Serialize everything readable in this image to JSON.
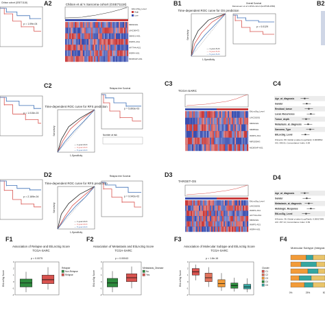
{
  "panels": {
    "A2": {
      "label": "A2",
      "title": "Chibon et al.'s Sarcoma cohort (GSE71118)",
      "genes": [
        "MIR22HG",
        "LINC00472",
        "UBXD1-AS1",
        "WWP1-AS1",
        "AF7744-AS1",
        "WDR4-AS1",
        "MCM3AP-AS1"
      ],
      "legend": [
        "EtiLncSig_Level",
        "High",
        "Low"
      ]
    },
    "A_left": {
      "header": "Chibon cohort (GSE71118)",
      "p": "p = 1.09e-04"
    },
    "B1": {
      "label": "B1",
      "roc_title": "Time-dependent ROC curve for OS prediction",
      "km_title": "Overall Survival",
      "km_sub": "Detsoneem et al.'s RNA cohort (E-MTAB-1583)",
      "p": "p = 0.0129",
      "xlab": "1-Specificity",
      "ylab": "Sensitivity"
    },
    "B2": {
      "label": "B2"
    },
    "A_mid": {
      "p": "p = 1.015e-03"
    },
    "C2": {
      "label": "C2",
      "roc_title": "Time-dependent ROC curve for RFS prediction",
      "km_title": "Relapse-free Survival",
      "p": "p = 5.893e-03",
      "xlab": "1-Specificity",
      "ylab": "Sensitivity",
      "risk": "Number at risk"
    },
    "C3": {
      "label": "C3",
      "title": "TCGA-SARC",
      "genes": [
        "EtiLncSig_Level",
        "LINC01001",
        "MIR22HG",
        "MIR89GH",
        "WWP1-AS1",
        "MIR10DHG",
        "MCM3AP-AS1"
      ]
    },
    "C4": {
      "label": "C4",
      "rows": [
        "Age_at_diagnosis",
        "Gender",
        "Residual_tumor",
        "Local_Recurrence",
        "Tumor_depth",
        "Metastasis_at_diagnosis",
        "Sarcoma_Type",
        "EtiLncSig_Level"
      ],
      "foot": "# Events: 80; Global p-value (Log-Rank): 0.0009562\nAIC: 595.51; Concordance Index: 0.69"
    },
    "D1": {
      "p": "p = 2.169e-04"
    },
    "D2": {
      "label": "D2",
      "roc_title": "Time-dependent ROC curve for RFS prediction",
      "km_title": "Relapse-free Survival",
      "p": "p = 9.942e-02",
      "xlab": "1-Specificity",
      "ylab": "Sensitivity"
    },
    "D3": {
      "label": "D3",
      "title": "TARGET-OS",
      "genes": [
        "EtiLncSig_Level",
        "LINC01001",
        "WWP1-AS1",
        "AF7744-AS1",
        "MIR22HG",
        "WWP1-AS1",
        "WDR4-AS1"
      ]
    },
    "D4": {
      "label": "D4",
      "rows": [
        "Age_at_diagnosis",
        "Gender",
        "Metastasis_at_diagnosis",
        "Histologic_Response",
        "EtiLncSig_Level"
      ],
      "foot": "# Events: 36; Global p-value (Log-Rank): 0.00017049\nAIC: 257.14; Concordance Index: 0.69"
    },
    "F1": {
      "label": "F1",
      "title": "Association of Relapse and EtiLncSig Score",
      "sub": "TCGA-SARC",
      "p": "p = 0.0075",
      "ylab": "EtiLncSig Score",
      "legend_title": "Relapse",
      "legend": [
        "Non-Relapse",
        "Relapse"
      ]
    },
    "F2": {
      "label": "F2",
      "title": "Association of Metastasis and EtiLncSig Score",
      "sub": "TCGA-SARC",
      "p": "p = 0.00043",
      "ylab": "EtiLncSig Score",
      "legend_title": "Metastasis_Disease",
      "legend": [
        "No",
        "Yes"
      ]
    },
    "F3": {
      "label": "F3",
      "title": "Association of Molecular Subtype and EtiLncSig Score",
      "sub": "TCGA-SARC",
      "p": "p = 1.8e-16",
      "ylab": "EtiLncSig Score",
      "legend_title": "Cluster",
      "legend": [
        "C1",
        "C2",
        "C3",
        "C4",
        "C5"
      ]
    },
    "F4": {
      "label": "F4",
      "title": "Molecular Subtype (Integrat...",
      "axis": [
        "0%",
        "25%",
        "50%"
      ]
    }
  },
  "colors": {
    "red": "#d9534f",
    "blue": "#3b6fb6",
    "green": "#2e8b3e",
    "teal": "#35a6a0",
    "orange": "#f29b38",
    "heat_red": "#c93a3a",
    "heat_blue": "#3a4fb0"
  },
  "chart_data": [
    {
      "type": "line",
      "name": "ROC B1",
      "series": [
        {
          "name": "1-year",
          "values": [
            [
              0,
              0
            ],
            [
              0.05,
              0.35
            ],
            [
              0.2,
              0.6
            ],
            [
              0.5,
              0.85
            ],
            [
              1,
              1
            ]
          ]
        },
        {
          "name": "3-year",
          "values": [
            [
              0,
              0
            ],
            [
              0.1,
              0.3
            ],
            [
              0.3,
              0.55
            ],
            [
              0.6,
              0.8
            ],
            [
              1,
              1
            ]
          ]
        },
        {
          "name": "5-year",
          "values": [
            [
              0,
              0
            ],
            [
              0.15,
              0.25
            ],
            [
              0.4,
              0.5
            ],
            [
              0.7,
              0.75
            ],
            [
              1,
              1
            ]
          ]
        }
      ]
    },
    {
      "type": "line",
      "name": "ROC C2",
      "series": [
        {
          "name": "1-year",
          "values": [
            [
              0,
              0
            ],
            [
              0.1,
              0.3
            ],
            [
              0.3,
              0.6
            ],
            [
              0.6,
              0.8
            ],
            [
              1,
              1
            ]
          ]
        },
        {
          "name": "3-year",
          "values": [
            [
              0,
              0
            ],
            [
              0.15,
              0.28
            ],
            [
              0.35,
              0.55
            ],
            [
              0.65,
              0.78
            ],
            [
              1,
              1
            ]
          ]
        },
        {
          "name": "5-year",
          "values": [
            [
              0,
              0
            ],
            [
              0.2,
              0.25
            ],
            [
              0.45,
              0.5
            ],
            [
              0.7,
              0.72
            ],
            [
              1,
              1
            ]
          ]
        }
      ]
    },
    {
      "type": "line",
      "name": "ROC D2",
      "series": [
        {
          "name": "1-year",
          "values": [
            [
              0,
              0
            ],
            [
              0.1,
              0.35
            ],
            [
              0.3,
              0.6
            ],
            [
              0.6,
              0.82
            ],
            [
              1,
              1
            ]
          ]
        },
        {
          "name": "3-year",
          "values": [
            [
              0,
              0
            ],
            [
              0.2,
              0.3
            ],
            [
              0.4,
              0.55
            ],
            [
              0.7,
              0.78
            ],
            [
              1,
              1
            ]
          ]
        },
        {
          "name": "5-year",
          "values": [
            [
              0,
              0
            ],
            [
              0.25,
              0.3
            ],
            [
              0.5,
              0.55
            ],
            [
              0.75,
              0.75
            ],
            [
              1,
              1
            ]
          ]
        }
      ]
    },
    {
      "type": "box",
      "name": "F1",
      "categories": [
        "Non-Relapse",
        "Relapse"
      ],
      "values": [
        [
          -1.6,
          -0.8,
          -0.2,
          0.4,
          1.5
        ],
        [
          -1.2,
          -0.3,
          0.3,
          1.0,
          2.2
        ]
      ]
    },
    {
      "type": "box",
      "name": "F2",
      "categories": [
        "No",
        "Yes"
      ],
      "values": [
        [
          -1.6,
          -0.8,
          -0.2,
          0.5,
          1.6
        ],
        [
          -1.0,
          0.0,
          0.6,
          1.2,
          2.3
        ]
      ]
    },
    {
      "type": "box",
      "name": "F3",
      "categories": [
        "C1",
        "C2",
        "C3",
        "C4",
        "C5"
      ],
      "values": [
        [
          0.2,
          1.0,
          1.5,
          2.0,
          2.6
        ],
        [
          -0.8,
          0.0,
          0.6,
          1.3,
          2.2
        ],
        [
          -1.4,
          -0.8,
          -0.3,
          0.3,
          1.3
        ],
        [
          -1.5,
          -1.0,
          -0.6,
          -0.2,
          0.6
        ],
        [
          -1.6,
          -1.1,
          -0.8,
          -0.4,
          0.5
        ]
      ]
    }
  ]
}
